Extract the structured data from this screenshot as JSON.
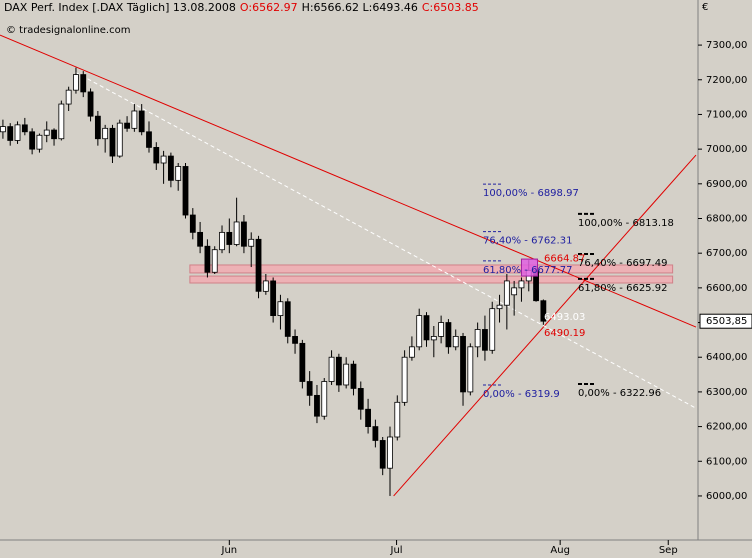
{
  "chart_data": {
    "type": "candlestick",
    "header": [
      "DAX Perf. Index [.DAX Täglich] 13.08.2008",
      "O:6562.97",
      "H:6566.62 L:6493.46",
      "C:6503.85"
    ],
    "copyright": "© tradesignalonline.com",
    "currency": "€",
    "last_price_label": "6503,85",
    "last_price": 6503.85,
    "up_color": "#ffffff",
    "down_color": "#000000",
    "open": [
      7050,
      7065,
      7025,
      7070,
      7050,
      7000,
      7040,
      7055,
      7030,
      7130,
      7170,
      7215,
      7165,
      7095,
      7030,
      7060,
      6980,
      7075,
      7060,
      7110,
      7050,
      7005,
      6960,
      6980,
      6910,
      6950,
      6810,
      6760,
      6720,
      6645,
      6710,
      6760,
      6725,
      6790,
      6720,
      6740,
      6590,
      6620,
      6520,
      6560,
      6460,
      6440,
      6330,
      6290,
      6230,
      6330,
      6400,
      6320,
      6380,
      6310,
      6250,
      6200,
      6160,
      6080,
      6170,
      6270,
      6400,
      6430,
      6520,
      6450,
      6460,
      6500,
      6430,
      6460,
      6300,
      6430,
      6480,
      6420,
      6540,
      6550,
      6580,
      6600,
      6620,
      6650,
      6562.97
    ],
    "high": [
      7085,
      7075,
      7080,
      7090,
      7060,
      7045,
      7080,
      7060,
      7140,
      7180,
      7235,
      7225,
      7175,
      7110,
      7070,
      7070,
      7085,
      7095,
      7130,
      7130,
      7080,
      7020,
      6995,
      6990,
      6960,
      6960,
      6830,
      6790,
      6740,
      6720,
      6780,
      6800,
      6860,
      6810,
      6760,
      6750,
      6640,
      6630,
      6580,
      6570,
      6480,
      6450,
      6360,
      6320,
      6340,
      6420,
      6410,
      6400,
      6390,
      6330,
      6280,
      6220,
      6170,
      6200,
      6290,
      6420,
      6460,
      6540,
      6530,
      6490,
      6520,
      6510,
      6480,
      6470,
      6440,
      6500,
      6520,
      6560,
      6580,
      6640,
      6620,
      6630,
      6680,
      6660,
      6566.62
    ],
    "low": [
      7030,
      7010,
      7015,
      7040,
      6985,
      6990,
      7020,
      7010,
      7025,
      7110,
      7160,
      7150,
      7080,
      7010,
      6990,
      6960,
      6975,
      7050,
      7050,
      7040,
      6990,
      6940,
      6900,
      6890,
      6880,
      6800,
      6740,
      6700,
      6630,
      6640,
      6700,
      6700,
      6720,
      6700,
      6660,
      6570,
      6580,
      6500,
      6480,
      6440,
      6410,
      6310,
      6260,
      6210,
      6220,
      6320,
      6300,
      6310,
      6290,
      6220,
      6180,
      6140,
      6060,
      6000,
      6160,
      6260,
      6390,
      6420,
      6430,
      6400,
      6440,
      6410,
      6420,
      6260,
      6290,
      6400,
      6390,
      6410,
      6500,
      6480,
      6520,
      6560,
      6590,
      6560,
      6493.46
    ],
    "close": [
      7065,
      7025,
      7070,
      7050,
      7000,
      7040,
      7055,
      7030,
      7130,
      7170,
      7215,
      7165,
      7095,
      7030,
      7060,
      6980,
      7075,
      7060,
      7110,
      7050,
      7005,
      6960,
      6980,
      6910,
      6950,
      6810,
      6760,
      6720,
      6645,
      6710,
      6760,
      6725,
      6790,
      6720,
      6740,
      6590,
      6620,
      6520,
      6560,
      6460,
      6440,
      6330,
      6290,
      6230,
      6330,
      6400,
      6320,
      6380,
      6310,
      6250,
      6200,
      6160,
      6080,
      6170,
      6270,
      6400,
      6430,
      6520,
      6450,
      6460,
      6500,
      6430,
      6460,
      6300,
      6430,
      6480,
      6420,
      6540,
      6550,
      6620,
      6600,
      6620,
      6650,
      6562.97,
      6503.85
    ],
    "xlim": [
      -0.4,
      94.9
    ],
    "xticks": [
      {
        "value": 31,
        "label": "Jun"
      },
      {
        "value": 53.9,
        "label": "Jul"
      },
      {
        "value": 76.3,
        "label": "Aug"
      },
      {
        "value": 91.1,
        "label": "Sep"
      }
    ],
    "ylim": [
      5873,
      7430
    ],
    "yticks": [
      {
        "value": 6000,
        "label": "6000,00"
      },
      {
        "value": 6100,
        "label": "6100,00"
      },
      {
        "value": 6200,
        "label": "6200,00"
      },
      {
        "value": 6300,
        "label": "6300,00"
      },
      {
        "value": 6400,
        "label": "6400,00"
      },
      {
        "value": 6500,
        "label": "6500,00"
      },
      {
        "value": 6600,
        "label": "6600,00"
      },
      {
        "value": 6700,
        "label": "6700,00"
      },
      {
        "value": 6800,
        "label": "6800,00"
      },
      {
        "value": 6900,
        "label": "6900,00"
      },
      {
        "value": 7000,
        "label": "7000,00"
      },
      {
        "value": 7100,
        "label": "7100,00"
      },
      {
        "value": 7200,
        "label": "7200,00"
      },
      {
        "value": 7300,
        "label": "7300,00"
      }
    ],
    "grid": false,
    "lines": [
      {
        "color": "#e00000",
        "dash": false,
        "x": [
          -0.4,
          94.9
        ],
        "y": [
          7329,
          6487
        ]
      },
      {
        "color": "#e00000",
        "dash": false,
        "x": [
          53.5,
          94.9
        ],
        "y": [
          6000,
          6983
        ]
      },
      {
        "color": "#ffffff",
        "dash": true,
        "x": [
          9.9,
          94.9
        ],
        "y": [
          7222,
          6253
        ]
      }
    ],
    "zones": [
      {
        "color": "#f2a9b0",
        "x": [
          25.6,
          91.7
        ],
        "y": [
          6643,
          6666
        ]
      },
      {
        "color": "#f2a9b0",
        "x": [
          25.6,
          91.7
        ],
        "y": [
          6614,
          6634
        ]
      }
    ],
    "highlight": {
      "color": "#e060e0",
      "x": [
        71,
        73.2
      ],
      "y": [
        6634,
        6683
      ]
    },
    "price_labels": [
      {
        "value": 6664.87,
        "color": "#e00000"
      },
      {
        "value": 6493.03,
        "color": "#ffffff"
      },
      {
        "value": 6490.19,
        "color": "#e00000"
      }
    ],
    "fib_sets": [
      {
        "color": "#2020a0",
        "levels": [
          {
            "label": "100,00% - 6898.97",
            "value": 6898.97
          },
          {
            "label": "76,40% - 6762.31",
            "value": 6762.31
          },
          {
            "label": "61,80% - 6677.77",
            "value": 6677.77
          },
          {
            "label": "0,00% - 6319.9",
            "value": 6319.9
          }
        ]
      },
      {
        "color": "#000000",
        "levels": [
          {
            "label": "100,00% - 6813.18",
            "value": 6813.18
          },
          {
            "label": "76,40% - 6697.49",
            "value": 6697.49
          },
          {
            "label": "61,80% - 6625.92",
            "value": 6625.92
          },
          {
            "label": "0,00% - 6322.96",
            "value": 6322.96
          }
        ]
      }
    ]
  }
}
